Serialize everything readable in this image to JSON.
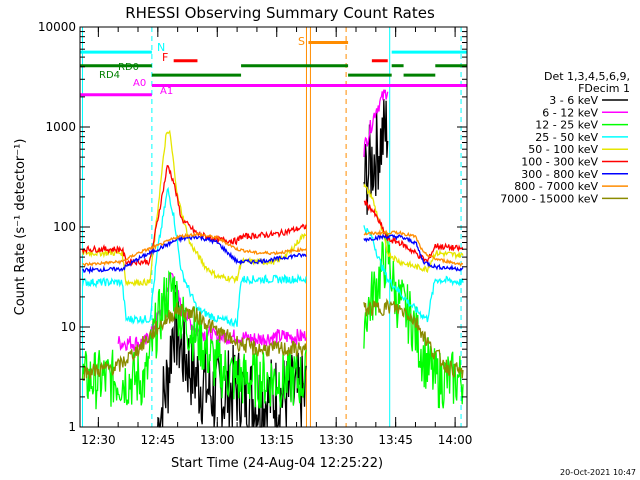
{
  "chart_data": {
    "type": "line",
    "title": "RHESSI Observing Summary Count Rates",
    "xlabel": "Start Time (24-Aug-04 12:25:22)",
    "ylabel": "Count Rate (s⁻¹ detector⁻¹)",
    "yscale": "log",
    "ylim": [
      1,
      10000
    ],
    "xlim": [
      "12:25:22",
      "14:03"
    ],
    "x_ticks": [
      "12:30",
      "12:45",
      "13:00",
      "13:15",
      "13:30",
      "13:45",
      "14:00"
    ],
    "y_ticks": [
      "1",
      "10",
      "100",
      "1000",
      "10000"
    ],
    "legend_header": [
      "Det 1,3,4,5,6,9,",
      "FDecim 1"
    ],
    "timestamp": "20-Oct-2021 10:47",
    "flags": {
      "N": "N",
      "F": "F",
      "S": "S",
      "RD0": "RD0",
      "RD4": "RD4",
      "A0": "A0",
      "A1": "A1"
    },
    "data_gap": [
      "13:22:30",
      "13:37:00"
    ],
    "vlines": [
      {
        "t": "12:26:00",
        "color": "#00ffff",
        "style": "solid"
      },
      {
        "t": "12:43:30",
        "color": "#00ffff",
        "style": "dashed"
      },
      {
        "t": "13:22:30",
        "color": "#ff8c00",
        "style": "solid"
      },
      {
        "t": "13:23:30",
        "color": "#ff8c00",
        "style": "solid"
      },
      {
        "t": "13:32:30",
        "color": "#ff8c00",
        "style": "dashed"
      },
      {
        "t": "13:43:30",
        "color": "#00ffff",
        "style": "solid"
      },
      {
        "t": "14:01:30",
        "color": "#00ffff",
        "style": "dashed"
      }
    ],
    "series": [
      {
        "name": "3 - 6 keV",
        "color": "#000000",
        "noise": 0.45,
        "points": [
          [
            "12:45:00",
            1
          ],
          [
            "12:47:30",
            3
          ],
          [
            "12:49:00",
            12
          ],
          [
            "12:51:00",
            6
          ],
          [
            "12:55:00",
            3
          ],
          [
            "13:00:00",
            2
          ],
          [
            "13:05:00",
            2.5
          ],
          [
            "13:10:00",
            1.8
          ],
          [
            "13:15:00",
            2
          ],
          [
            "13:22:00",
            2
          ],
          [
            "13:37:00",
            280
          ],
          [
            "13:40:00",
            550
          ],
          [
            "13:43:00",
            1000
          ]
        ]
      },
      {
        "name": "6 - 12 keV",
        "color": "#ff00ff",
        "noise": 0.08,
        "points": [
          [
            "12:35:00",
            7
          ],
          [
            "12:42:00",
            7
          ],
          [
            "12:46:00",
            15
          ],
          [
            "12:48:30",
            35
          ],
          [
            "12:51:00",
            15
          ],
          [
            "12:55:00",
            9
          ],
          [
            "13:00:00",
            8
          ],
          [
            "13:05:00",
            8
          ],
          [
            "13:10:00",
            7.5
          ],
          [
            "13:15:00",
            8
          ],
          [
            "13:22:00",
            8
          ],
          [
            "13:37:00",
            600
          ],
          [
            "13:40:00",
            1500
          ],
          [
            "13:43:00",
            2400
          ]
        ]
      },
      {
        "name": "12 - 25 keV",
        "color": "#00ff00",
        "noise": 0.3,
        "points": [
          [
            "12:26:00",
            3
          ],
          [
            "12:35:00",
            3
          ],
          [
            "12:42:00",
            3
          ],
          [
            "12:44:00",
            8
          ],
          [
            "12:47:00",
            20
          ],
          [
            "12:49:00",
            25
          ],
          [
            "12:51:00",
            12
          ],
          [
            "12:55:00",
            8
          ],
          [
            "13:00:00",
            4
          ],
          [
            "13:05:00",
            3
          ],
          [
            "13:10:00",
            3
          ],
          [
            "13:15:00",
            3
          ],
          [
            "13:22:00",
            3
          ],
          [
            "13:37:00",
            12
          ],
          [
            "13:40:00",
            25
          ],
          [
            "13:43:00",
            55
          ],
          [
            "13:45:00",
            20
          ],
          [
            "13:49:00",
            12
          ],
          [
            "13:52:00",
            5
          ],
          [
            "13:55:00",
            3
          ],
          [
            "14:02:00",
            3
          ]
        ]
      },
      {
        "name": "25 - 50 keV",
        "color": "#00ffff",
        "noise": 0.04,
        "points": [
          [
            "12:26:00",
            28
          ],
          [
            "12:36:00",
            28
          ],
          [
            "12:37:00",
            12
          ],
          [
            "12:43:00",
            12
          ],
          [
            "12:45:00",
            60
          ],
          [
            "12:47:30",
            240
          ],
          [
            "12:49:00",
            130
          ],
          [
            "12:51:00",
            35
          ],
          [
            "12:55:00",
            15
          ],
          [
            "13:00:00",
            12
          ],
          [
            "13:05:00",
            11
          ],
          [
            "13:06:00",
            30
          ],
          [
            "13:15:00",
            30
          ],
          [
            "13:22:00",
            30
          ],
          [
            "13:37:00",
            100
          ],
          [
            "13:39:00",
            80
          ],
          [
            "13:41:00",
            45
          ],
          [
            "13:43:00",
            30
          ],
          [
            "13:45:00",
            25
          ],
          [
            "13:48:00",
            18
          ],
          [
            "13:50:00",
            15
          ],
          [
            "13:53:00",
            12
          ],
          [
            "13:55:00",
            30
          ],
          [
            "14:02:00",
            28
          ]
        ]
      },
      {
        "name": "50 - 100 keV",
        "color": "#e6e600",
        "noise": 0.03,
        "points": [
          [
            "12:26:00",
            55
          ],
          [
            "12:36:00",
            55
          ],
          [
            "12:37:00",
            28
          ],
          [
            "12:43:00",
            28
          ],
          [
            "12:45:00",
            150
          ],
          [
            "12:47:00",
            800
          ],
          [
            "12:48:00",
            900
          ],
          [
            "12:50:00",
            200
          ],
          [
            "12:53:00",
            70
          ],
          [
            "12:57:00",
            40
          ],
          [
            "13:00:00",
            32
          ],
          [
            "13:05:00",
            30
          ],
          [
            "13:06:00",
            45
          ],
          [
            "13:15:00",
            45
          ],
          [
            "13:18:00",
            55
          ],
          [
            "13:22:00",
            85
          ],
          [
            "13:37:00",
            260
          ],
          [
            "13:39:00",
            200
          ],
          [
            "13:41:00",
            110
          ],
          [
            "13:43:00",
            55
          ],
          [
            "13:46:00",
            45
          ],
          [
            "13:50:00",
            40
          ],
          [
            "13:53:00",
            38
          ],
          [
            "13:55:00",
            55
          ],
          [
            "14:02:00",
            52
          ]
        ]
      },
      {
        "name": "100 - 300 keV",
        "color": "#ff0000",
        "noise": 0.03,
        "points": [
          [
            "12:26:00",
            60
          ],
          [
            "12:36:00",
            60
          ],
          [
            "12:37:00",
            45
          ],
          [
            "12:43:00",
            45
          ],
          [
            "12:45:00",
            120
          ],
          [
            "12:47:30",
            420
          ],
          [
            "12:49:00",
            280
          ],
          [
            "12:51:00",
            120
          ],
          [
            "12:55:00",
            85
          ],
          [
            "13:00:00",
            75
          ],
          [
            "13:05:00",
            72
          ],
          [
            "13:06:00",
            80
          ],
          [
            "13:15:00",
            85
          ],
          [
            "13:22:00",
            100
          ],
          [
            "13:37:00",
            180
          ],
          [
            "13:39:00",
            150
          ],
          [
            "13:41:00",
            110
          ],
          [
            "13:43:00",
            75
          ],
          [
            "13:46:00",
            70
          ],
          [
            "13:50:00",
            55
          ],
          [
            "13:53:00",
            45
          ],
          [
            "13:55:00",
            65
          ],
          [
            "14:02:00",
            60
          ]
        ]
      },
      {
        "name": "300 - 800 keV",
        "color": "#0000ff",
        "noise": 0.02,
        "points": [
          [
            "12:26:00",
            37
          ],
          [
            "12:36:00",
            38
          ],
          [
            "12:40:00",
            48
          ],
          [
            "12:45:00",
            60
          ],
          [
            "12:50:00",
            75
          ],
          [
            "12:55:00",
            80
          ],
          [
            "13:00:00",
            70
          ],
          [
            "13:05:00",
            45
          ],
          [
            "13:10:00",
            45
          ],
          [
            "13:15:00",
            48
          ],
          [
            "13:20:00",
            52
          ],
          [
            "13:22:00",
            52
          ],
          [
            "13:37:00",
            75
          ],
          [
            "13:42:00",
            80
          ],
          [
            "13:46:00",
            80
          ],
          [
            "13:50:00",
            70
          ],
          [
            "13:52:00",
            45
          ],
          [
            "13:55:00",
            40
          ],
          [
            "14:02:00",
            38
          ]
        ]
      },
      {
        "name": "800 - 7000 keV",
        "color": "#ff8c00",
        "noise": 0.015,
        "points": [
          [
            "12:26:00",
            42
          ],
          [
            "12:36:00",
            45
          ],
          [
            "12:40:00",
            55
          ],
          [
            "12:45:00",
            65
          ],
          [
            "12:50:00",
            80
          ],
          [
            "12:55:00",
            85
          ],
          [
            "13:00:00",
            78
          ],
          [
            "13:05:00",
            60
          ],
          [
            "13:10:00",
            55
          ],
          [
            "13:15:00",
            55
          ],
          [
            "13:22:00",
            60
          ],
          [
            "13:37:00",
            85
          ],
          [
            "13:42:00",
            88
          ],
          [
            "13:46:00",
            88
          ],
          [
            "13:50:00",
            80
          ],
          [
            "13:52:00",
            55
          ],
          [
            "13:55:00",
            48
          ],
          [
            "14:02:00",
            42
          ]
        ]
      },
      {
        "name": "7000 - 15000 keV",
        "color": "#8b8b00",
        "noise": 0.08,
        "points": [
          [
            "12:26:00",
            3.5
          ],
          [
            "12:35:00",
            4
          ],
          [
            "12:40:00",
            6
          ],
          [
            "12:45:00",
            10
          ],
          [
            "12:50:00",
            15
          ],
          [
            "12:55:00",
            13
          ],
          [
            "13:00:00",
            9
          ],
          [
            "13:05:00",
            7
          ],
          [
            "13:10:00",
            6
          ],
          [
            "13:15:00",
            6
          ],
          [
            "13:22:00",
            6
          ],
          [
            "13:37:00",
            15
          ],
          [
            "13:44:00",
            16
          ],
          [
            "13:48:00",
            14
          ],
          [
            "13:51:00",
            10
          ],
          [
            "13:54:00",
            6
          ],
          [
            "13:58:00",
            4
          ],
          [
            "14:02:00",
            3.5
          ]
        ]
      }
    ],
    "state_bars": [
      {
        "label": "N",
        "color": "#00ffff",
        "y": 5600,
        "segments": [
          [
            "12:25:22",
            "12:43:30"
          ],
          [
            "13:44:00",
            "14:03:00"
          ]
        ]
      },
      {
        "label": "F",
        "color": "#ff0000",
        "y": 4600,
        "segments": [
          [
            "12:49:00",
            "12:55:00"
          ],
          [
            "13:39:00",
            "13:43:00"
          ]
        ]
      },
      {
        "label": "S",
        "color": "#ff8c00",
        "y": 7000,
        "segments": [
          [
            "13:23:00",
            "13:33:00"
          ]
        ]
      },
      {
        "label": "RD0",
        "color": "#008000",
        "y": 4100,
        "segments": [
          [
            "12:25:22",
            "12:43:30"
          ],
          [
            "13:06:00",
            "13:33:00"
          ],
          [
            "13:44:00",
            "13:47:00"
          ],
          [
            "13:55:00",
            "14:03:00"
          ]
        ]
      },
      {
        "label": "RD4",
        "color": "#008000",
        "y": 3300,
        "segments": [
          [
            "12:43:30",
            "13:06:00"
          ],
          [
            "13:33:00",
            "13:44:00"
          ],
          [
            "13:47:00",
            "13:55:00"
          ]
        ]
      },
      {
        "label": "A0",
        "color": "#ff00ff",
        "y": 2100,
        "segments": [
          [
            "12:25:22",
            "12:43:30"
          ]
        ]
      },
      {
        "label": "A1",
        "color": "#ff00ff",
        "y": 2600,
        "segments": [
          [
            "12:43:30",
            "14:03:00"
          ]
        ]
      }
    ]
  }
}
